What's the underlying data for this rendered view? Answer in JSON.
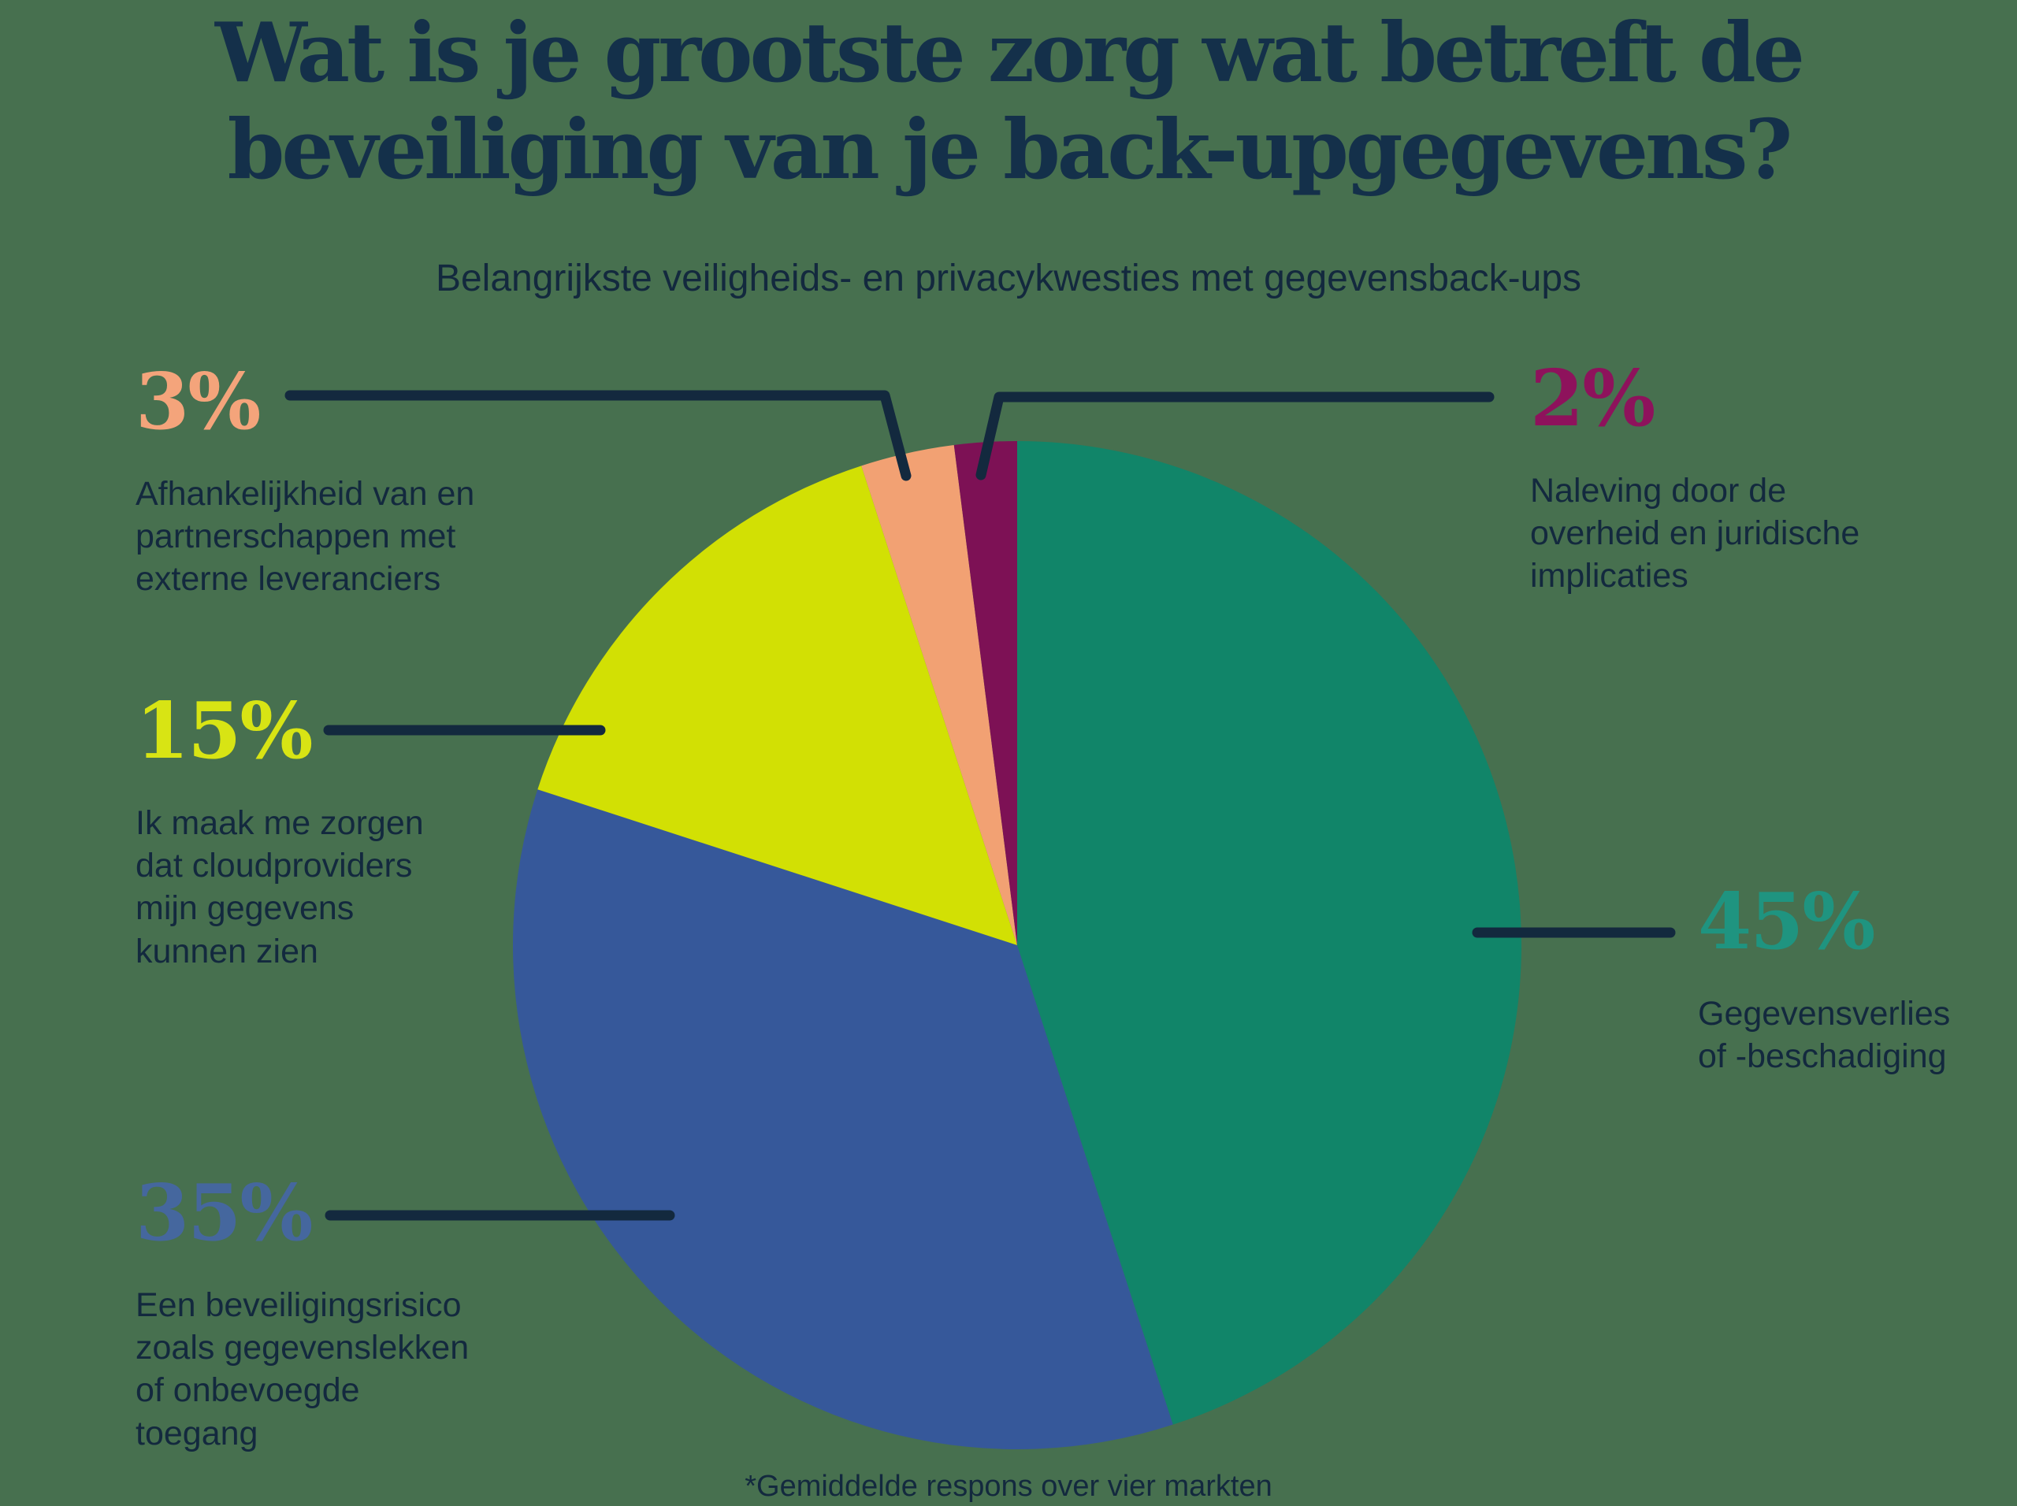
{
  "background_color": "#47704F",
  "ink_color": "#13293E",
  "header": {
    "title": "Wat is je grootste zorg wat betreft de\nbeveiliging van je back-upgegevens?",
    "subtitle": "Belangrijkste veiligheids- en privacykwesties met gegevensback-ups"
  },
  "chart_data": {
    "type": "pie",
    "title": "Wat is je grootste zorg wat betreft de beveiliging van je back-upgegevens?",
    "subtitle": "Belangrijkste veiligheids- en privacykwesties met gegevensback-ups",
    "unit": "%",
    "start_angle_deg": 0,
    "direction": "clockwise",
    "slices": [
      {
        "label": "Gegevensverlies of -beschadiging",
        "value": 45,
        "pct_label": "45%",
        "color": "#118569",
        "label_color": "#1F9480"
      },
      {
        "label": "Een beveiligingsrisico zoals gegevenslekken of onbevoegde toegang",
        "value": 35,
        "pct_label": "35%",
        "color": "#36589A",
        "label_color": "#45679E"
      },
      {
        "label": "Ik maak me zorgen dat cloudproviders mijn gegevens kunnen zien",
        "value": 15,
        "pct_label": "15%",
        "color": "#D2E004",
        "label_color": "#D8E414"
      },
      {
        "label": "Afhankelijkheid van en partnerschappen met externe leveranciers",
        "value": 3,
        "pct_label": "3%",
        "color": "#F2A173",
        "label_color": "#F4A47B"
      },
      {
        "label": "Naleving door de overheid en juridische implicaties",
        "value": 2,
        "pct_label": "2%",
        "color": "#7D1155",
        "label_color": "#8E125C"
      }
    ],
    "footnote": "*Gemiddelde respons over vier markten"
  },
  "callouts": {
    "c45": {
      "desc": "Gegevensverlies\nof -beschadiging"
    },
    "c35": {
      "desc": "Een beveiligingsrisico\nzoals gegevenslekken\nof onbevoegde\ntoegang"
    },
    "c15": {
      "desc": "Ik maak me zorgen\ndat cloudproviders\nmijn gegevens\nkunnen zien"
    },
    "c3": {
      "desc": "Afhankelijkheid van en\npartnerschappen met\nexterne leveranciers"
    },
    "c2": {
      "desc": "Naleving door de\noverheid en juridische\nimplicaties"
    }
  },
  "footer": {
    "note": "*Gemiddelde respons over vier markten"
  }
}
